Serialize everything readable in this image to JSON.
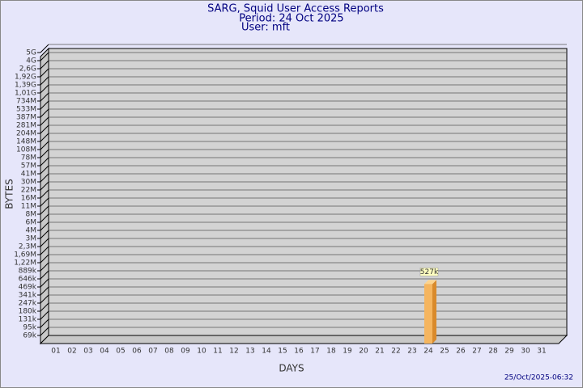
{
  "chart_data": {
    "type": "bar3d",
    "title": "SARG, Squid User Access Reports",
    "subtitle": "Period: 24 Oct 2025",
    "user": "User: mft",
    "x_label": "DAYS",
    "y_label": "BYTES",
    "footer": "25/Oct/2025-06:32",
    "categories": [
      "01",
      "02",
      "03",
      "04",
      "05",
      "06",
      "07",
      "08",
      "09",
      "10",
      "11",
      "12",
      "13",
      "14",
      "15",
      "16",
      "17",
      "18",
      "19",
      "20",
      "21",
      "22",
      "23",
      "24",
      "25",
      "26",
      "27",
      "28",
      "29",
      "30",
      "31"
    ],
    "values": [
      null,
      null,
      null,
      null,
      null,
      null,
      null,
      null,
      null,
      null,
      null,
      null,
      null,
      null,
      null,
      null,
      null,
      null,
      null,
      null,
      null,
      null,
      null,
      527000,
      null,
      null,
      null,
      null,
      null,
      null,
      null
    ],
    "value_labels": [
      null,
      null,
      null,
      null,
      null,
      null,
      null,
      null,
      null,
      null,
      null,
      null,
      null,
      null,
      null,
      null,
      null,
      null,
      null,
      null,
      null,
      null,
      null,
      "527k",
      null,
      null,
      null,
      null,
      null,
      null,
      null
    ],
    "color": "#f5b55f",
    "yticks": [
      {
        "value": 5000000000,
        "label": "5G"
      },
      {
        "value": 4000000000,
        "label": "4G"
      },
      {
        "value": 2600000000,
        "label": "2,6G"
      },
      {
        "value": 1920000000,
        "label": "1,92G"
      },
      {
        "value": 1390000000,
        "label": "1,39G"
      },
      {
        "value": 1010000000,
        "label": "1,01G"
      },
      {
        "value": 734000000,
        "label": "734M"
      },
      {
        "value": 533000000,
        "label": "533M"
      },
      {
        "value": 387000000,
        "label": "387M"
      },
      {
        "value": 281000000,
        "label": "281M"
      },
      {
        "value": 204000000,
        "label": "204M"
      },
      {
        "value": 148000000,
        "label": "148M"
      },
      {
        "value": 108000000,
        "label": "108M"
      },
      {
        "value": 78000000,
        "label": "78M"
      },
      {
        "value": 57000000,
        "label": "57M"
      },
      {
        "value": 41000000,
        "label": "41M"
      },
      {
        "value": 30000000,
        "label": "30M"
      },
      {
        "value": 22000000,
        "label": "22M"
      },
      {
        "value": 16000000,
        "label": "16M"
      },
      {
        "value": 11000000,
        "label": "11M"
      },
      {
        "value": 8000000,
        "label": "8M"
      },
      {
        "value": 6000000,
        "label": "6M"
      },
      {
        "value": 4000000,
        "label": "4M"
      },
      {
        "value": 3000000,
        "label": "3M"
      },
      {
        "value": 2300000,
        "label": "2,3M"
      },
      {
        "value": 1690000,
        "label": "1,69M"
      },
      {
        "value": 1220000,
        "label": "1,22M"
      },
      {
        "value": 889000,
        "label": "889k"
      },
      {
        "value": 646000,
        "label": "646k"
      },
      {
        "value": 469000,
        "label": "469k"
      },
      {
        "value": 341000,
        "label": "341k"
      },
      {
        "value": 247000,
        "label": "247k"
      },
      {
        "value": 180000,
        "label": "180k"
      },
      {
        "value": 131000,
        "label": "131k"
      },
      {
        "value": 95000,
        "label": "95k"
      },
      {
        "value": 69000,
        "label": "69k"
      }
    ],
    "grid": true
  }
}
